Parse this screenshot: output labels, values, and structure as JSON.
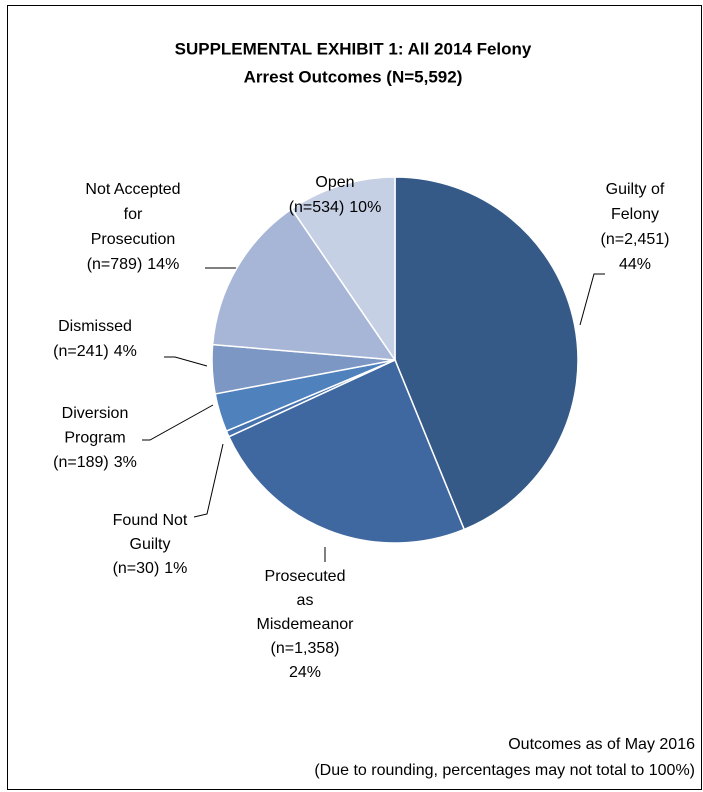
{
  "chart_data": {
    "type": "pie",
    "title": [
      "SUPPLEMENTAL EXHIBIT 1: All 2014 Felony",
      "Arrest Outcomes (N=5,592)"
    ],
    "categories": [
      [
        "Guilty of",
        "Felony"
      ],
      [
        "Prosecuted",
        "as",
        "Misdemeanor"
      ],
      [
        "Found Not",
        "Guilty"
      ],
      [
        "Diversion",
        "Program"
      ],
      [
        "Dismissed"
      ],
      [
        "Not Accepted",
        "for",
        "Prosecution"
      ],
      [
        "Open"
      ]
    ],
    "values": [
      2451,
      1358,
      30,
      189,
      241,
      789,
      534
    ],
    "value_labels": [
      "(n=2,451)",
      "(n=1,358)",
      "(n=30)",
      "(n=189)",
      "(n=241)",
      "(n=789)",
      "(n=534)"
    ],
    "percent_labels": [
      "44%",
      "24%",
      "1%",
      "3%",
      "4%",
      "14%",
      "10%"
    ],
    "colors": [
      "#355a88",
      "#3f67a0",
      "#4673ad",
      "#4f81bd",
      "#7c97c4",
      "#a7b6d6",
      "#c6d0e4"
    ],
    "notes": [
      "Outcomes as of May 2016",
      "(Due to rounding, percentages may not total to 100%)"
    ]
  }
}
